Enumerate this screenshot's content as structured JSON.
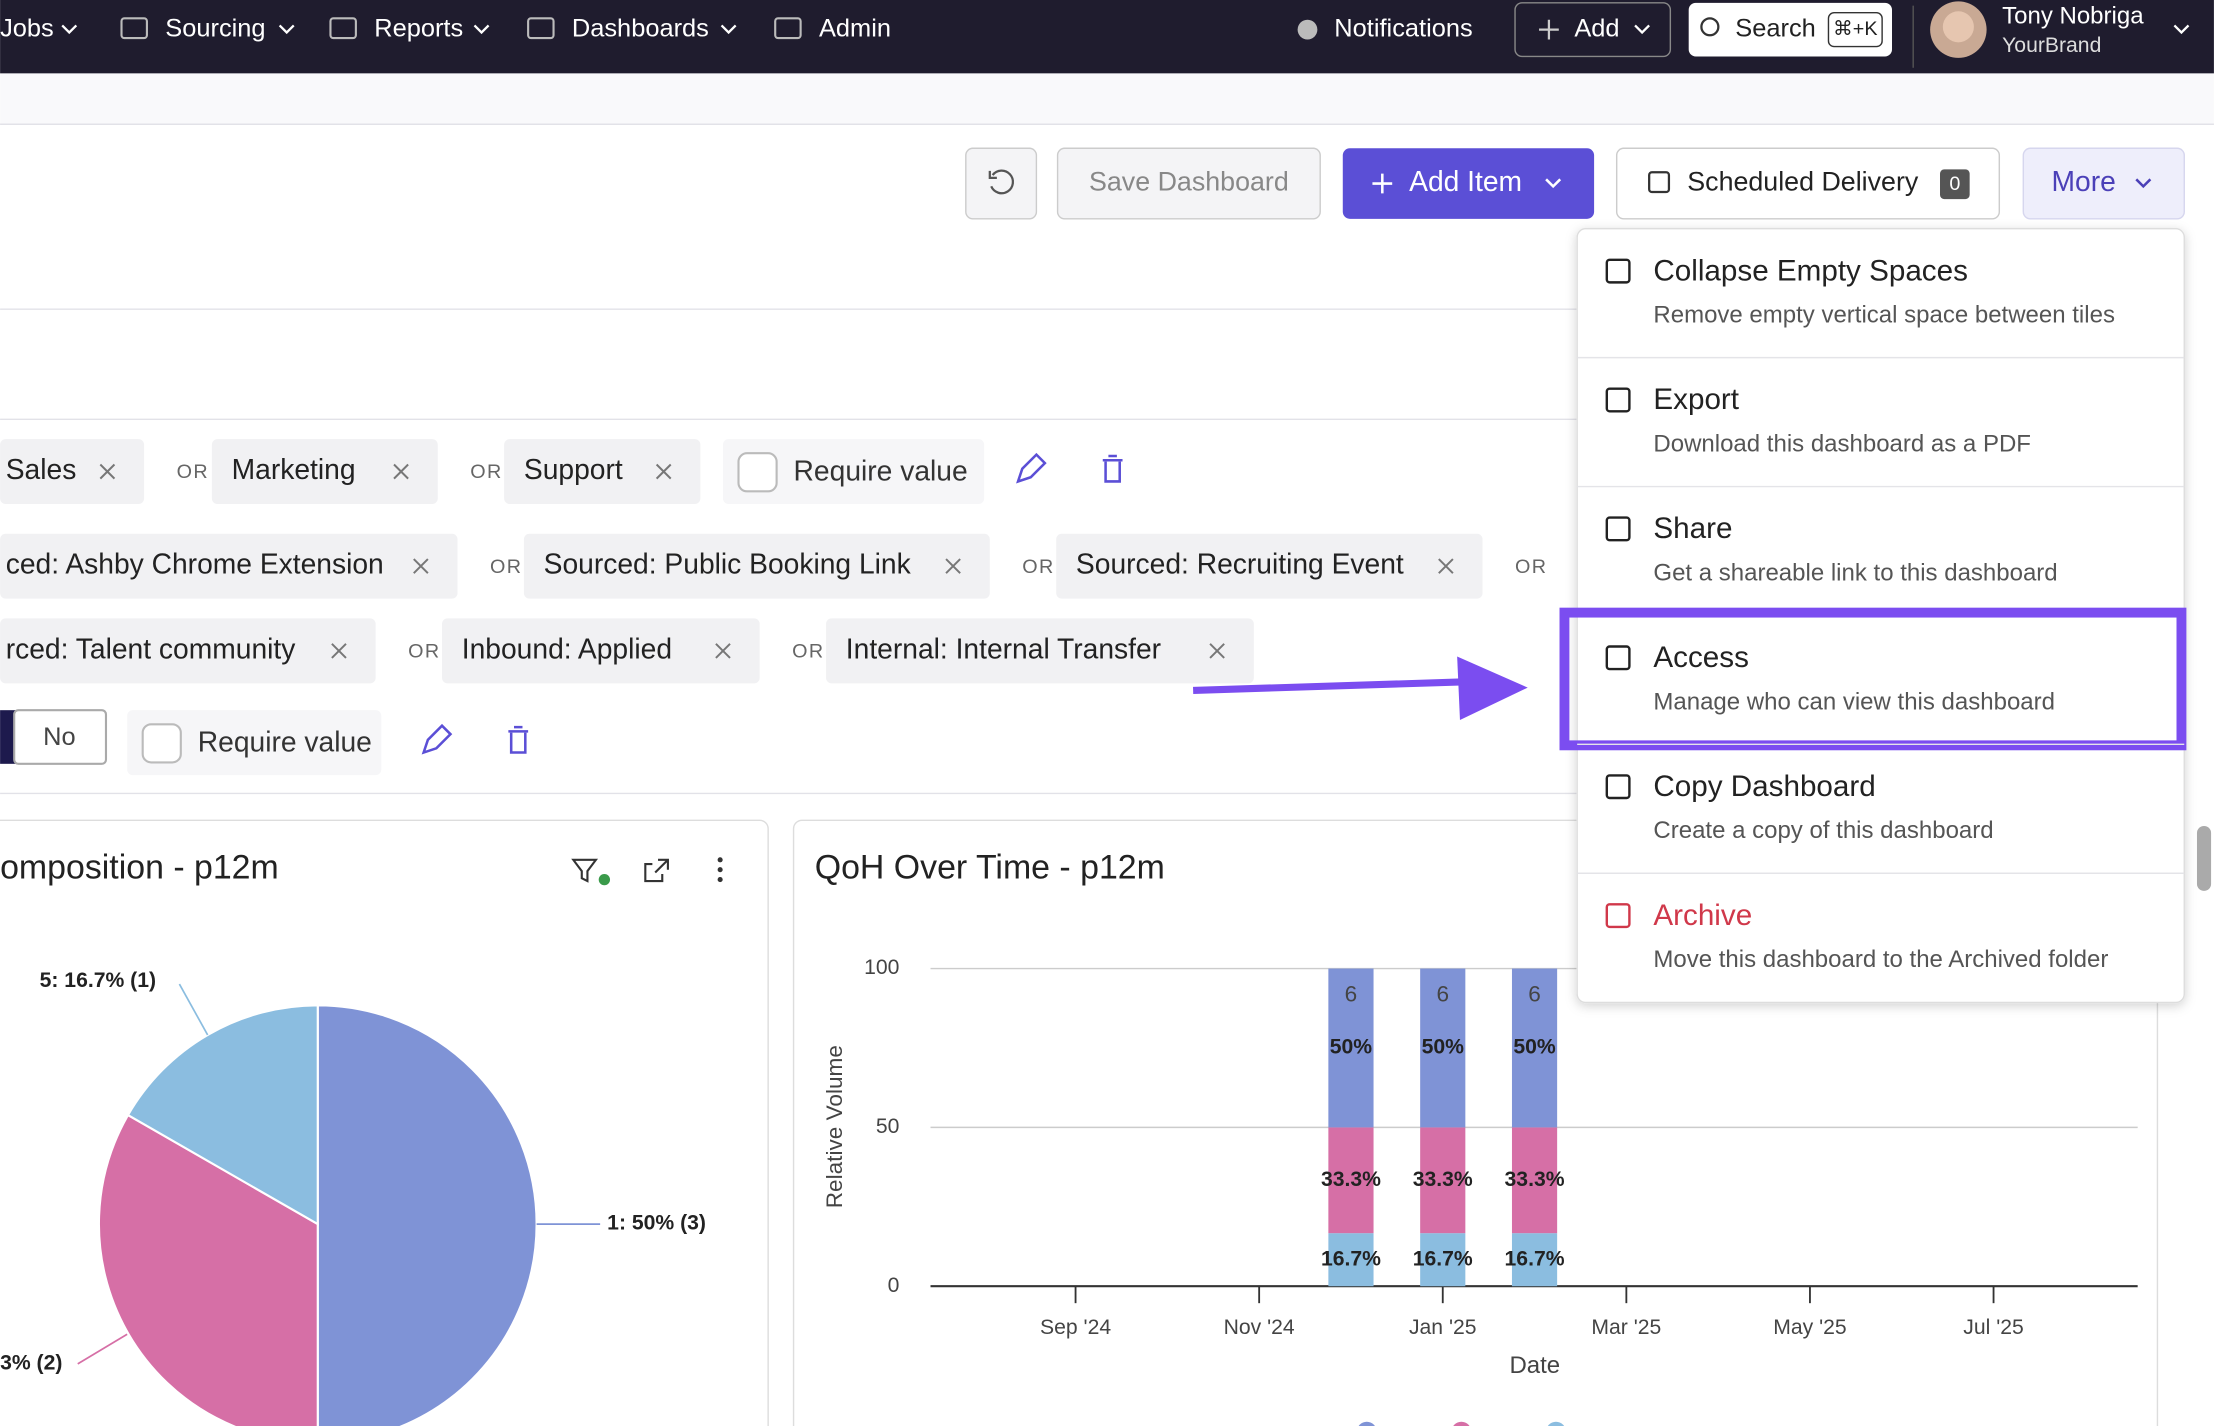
{
  "nav": {
    "items": [
      "Jobs",
      "Sourcing",
      "Reports",
      "Dashboards",
      "Admin"
    ],
    "notifications": "Notifications",
    "add": "Add",
    "search": "Search",
    "shortcut": "⌘+K",
    "user_name": "Tony Nobriga",
    "user_org": "YourBrand"
  },
  "toolbar": {
    "save": "Save Dashboard",
    "add_item": "Add Item",
    "scheduled": "Scheduled Delivery",
    "scheduled_count": "0",
    "more": "More"
  },
  "filters": {
    "or": "OR",
    "require": "Require value",
    "toggle": "No",
    "rows": [
      [
        "Sales",
        "Marketing",
        "Support"
      ],
      [
        "ced: Ashby Chrome Extension",
        "Sourced: Public Booking Link",
        "Sourced: Recruiting Event"
      ],
      [
        "rced: Talent community",
        "Inbound: Applied",
        "Internal: Internal Transfer"
      ]
    ]
  },
  "menu": [
    {
      "title": "Collapse Empty Spaces",
      "desc": "Remove empty vertical space between tiles"
    },
    {
      "title": "Export",
      "desc": "Download this dashboard as a PDF"
    },
    {
      "title": "Share",
      "desc": "Get a shareable link to this dashboard"
    },
    {
      "title": "Access",
      "desc": "Manage who can view this dashboard",
      "highlighted": true
    },
    {
      "title": "Copy Dashboard",
      "desc": "Create a copy of this dashboard"
    },
    {
      "title": "Archive",
      "desc": "Move this dashboard to the Archived folder",
      "danger": true
    }
  ],
  "pie": {
    "title": "omposition - p12m",
    "slices": [
      {
        "value": 50,
        "label": "1: 50% (3)",
        "color": "#7f93d6"
      },
      {
        "value": 33.3,
        "label": "3% (2)",
        "color": "#d66fa6"
      },
      {
        "value": 16.7,
        "label": "5: 16.7% (1)",
        "color": "#8bbde0"
      }
    ]
  },
  "bar": {
    "title": "QoH Over Time - p12m",
    "ylabel": "Relative Volume",
    "xlabel": "Date",
    "ylim": [
      0,
      100
    ],
    "yticks": [
      0,
      50,
      100
    ],
    "xlim": [
      -1.58,
      11.57
    ],
    "xticks": [
      {
        "value": 0,
        "label": "Sep '24"
      },
      {
        "value": 2,
        "label": "Nov '24"
      },
      {
        "value": 4,
        "label": "Jan '25"
      },
      {
        "value": 6,
        "label": "Mar '25"
      },
      {
        "value": 8,
        "label": "May '25"
      },
      {
        "value": 10,
        "label": "Jul '25"
      }
    ],
    "colors": [
      "#8bbde0",
      "#d66fa6",
      "#7f93d6"
    ],
    "bars": [
      {
        "x": 3,
        "total": "6",
        "values": [
          16.7,
          33.3,
          50
        ],
        "value_labels": [
          "16.7%",
          "33.3%",
          "50%"
        ]
      },
      {
        "x": 4,
        "total": "6",
        "values": [
          16.7,
          33.3,
          50
        ],
        "value_labels": [
          "16.7%",
          "33.3%",
          "50%"
        ]
      },
      {
        "x": 5,
        "total": "6",
        "values": [
          16.7,
          33.3,
          50
        ],
        "value_labels": [
          "16.7%",
          "33.3%",
          "50%"
        ]
      }
    ]
  }
}
